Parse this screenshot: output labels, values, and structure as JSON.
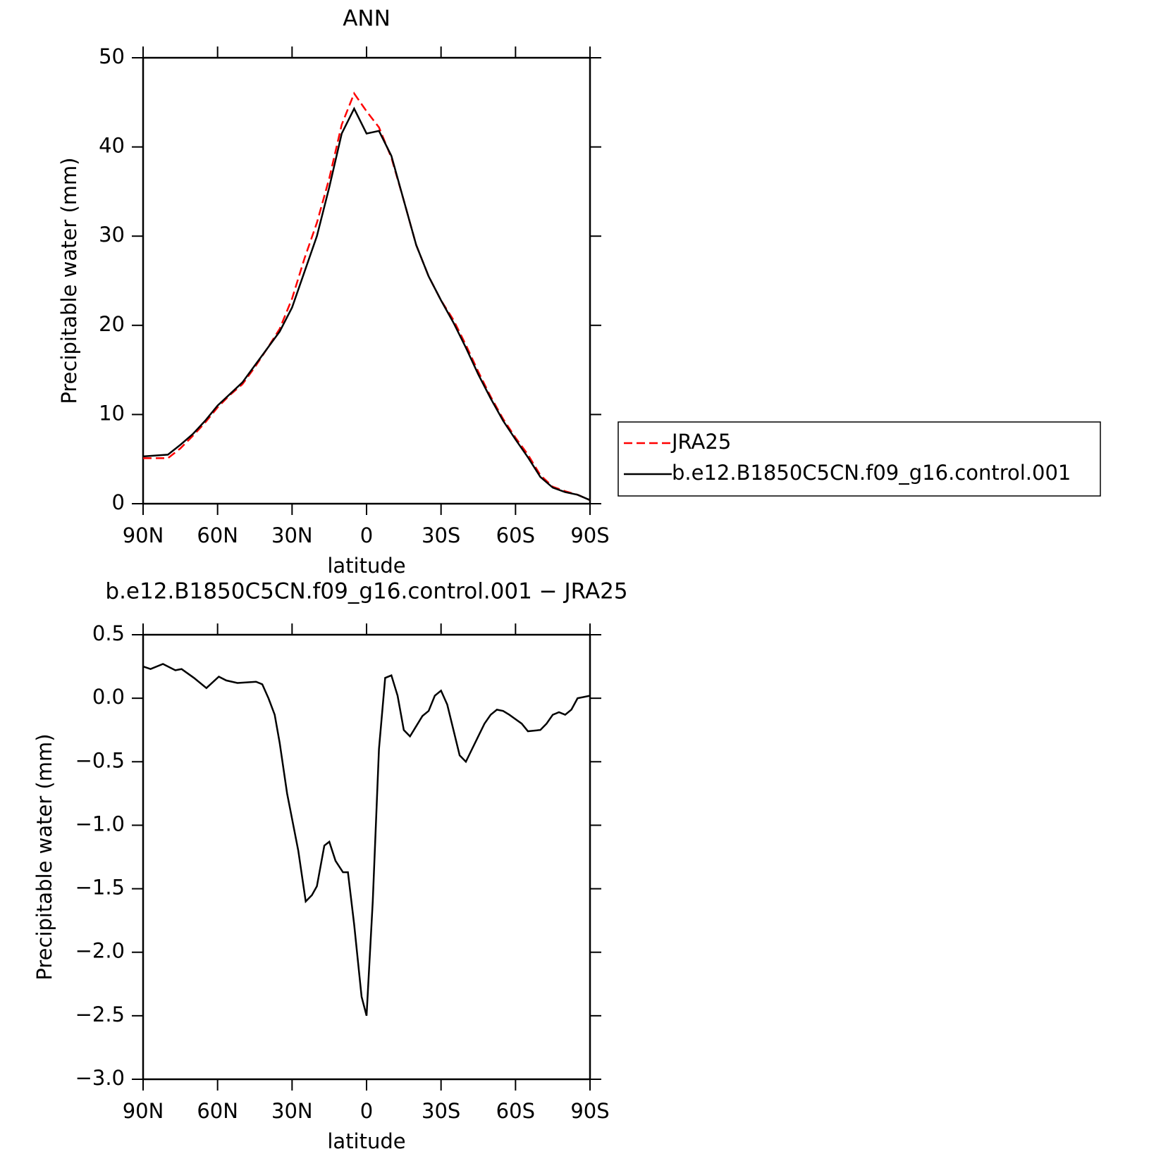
{
  "chart_data": [
    {
      "type": "line",
      "title": "ANN",
      "xlabel": "latitude",
      "ylabel": "Precipitable water (mm)",
      "x": [
        90,
        85,
        80,
        75,
        70,
        65,
        60,
        55,
        50,
        45,
        40,
        35,
        30,
        25,
        20,
        15,
        10,
        5,
        0,
        -5,
        -10,
        -15,
        -20,
        -25,
        -30,
        -35,
        -40,
        -45,
        -50,
        -55,
        -60,
        -65,
        -70,
        -75,
        -80,
        -85,
        -90
      ],
      "series": [
        {
          "name": "JRA25",
          "color": "#ff0000",
          "style": "dashed",
          "values": [
            5.1,
            5.1,
            5.1,
            6.2,
            7.6,
            9.1,
            10.8,
            12.2,
            13.4,
            15.3,
            17.4,
            19.6,
            23.0,
            27.5,
            31.5,
            36.5,
            42.5,
            46.0,
            44.0,
            42.2,
            38.8,
            34.0,
            29.0,
            25.5,
            22.8,
            20.6,
            17.8,
            14.8,
            12.0,
            9.5,
            7.4,
            5.5,
            3.2,
            1.9,
            1.4,
            1.0,
            0.4
          ]
        },
        {
          "name": "b.e12.B1850C5CN.f09_g16.control.001",
          "color": "#000000",
          "style": "solid",
          "values": [
            5.3,
            5.4,
            5.5,
            6.6,
            7.8,
            9.3,
            11.0,
            12.3,
            13.6,
            15.5,
            17.4,
            19.3,
            22.0,
            26.0,
            30.0,
            35.5,
            41.5,
            44.3,
            41.5,
            41.8,
            39.0,
            34.0,
            29.0,
            25.5,
            22.8,
            20.3,
            17.5,
            14.5,
            11.8,
            9.3,
            7.2,
            5.2,
            3.0,
            1.8,
            1.3,
            1.0,
            0.4
          ]
        }
      ],
      "xlim": [
        90,
        -90
      ],
      "xticks": [
        {
          "value": 90,
          "label": "90N"
        },
        {
          "value": 60,
          "label": "60N"
        },
        {
          "value": 30,
          "label": "30N"
        },
        0,
        {
          "value": -30,
          "label": "30S"
        },
        {
          "value": -60,
          "label": "60S"
        },
        {
          "value": -90,
          "label": "90S"
        }
      ],
      "ylim": [
        0,
        50
      ],
      "yticks": [
        0,
        10,
        20,
        30,
        40,
        50
      ],
      "legend": "right"
    },
    {
      "type": "line",
      "title": "b.e12.B1850C5CN.f09_g16.control.001 − JRA25",
      "xlabel": "latitude",
      "ylabel": "Precipitable water (mm)",
      "x": [
        90,
        87,
        82,
        77,
        74.5,
        69.5,
        64.5,
        59.5,
        56.5,
        52,
        44.5,
        42,
        39.5,
        37,
        35,
        32,
        29.5,
        27.5,
        24.5,
        22,
        20,
        17,
        15,
        12.5,
        9.5,
        7.5,
        5,
        2,
        0,
        -2.5,
        -5,
        -7.5,
        -10,
        -12.5,
        -15,
        -17.5,
        -20,
        -22.5,
        -25,
        -27.5,
        -30,
        -32.5,
        -35,
        -37.5,
        -40,
        -42.5,
        -45,
        -47.5,
        -50,
        -52.5,
        -55,
        -57.5,
        -62.5,
        -65,
        -70,
        -72.5,
        -75,
        -77.5,
        -80,
        -82.5,
        -85,
        -87.5,
        -90
      ],
      "series": [
        {
          "color": "#000000",
          "style": "solid",
          "values": [
            0.25,
            0.23,
            0.27,
            0.22,
            0.23,
            0.16,
            0.08,
            0.17,
            0.14,
            0.12,
            0.13,
            0.11,
            0.0,
            -0.13,
            -0.35,
            -0.75,
            -1.0,
            -1.2,
            -1.6,
            -1.55,
            -1.48,
            -1.16,
            -1.13,
            -1.28,
            -1.37,
            -1.37,
            -1.78,
            -2.35,
            -2.5,
            -1.6,
            -0.4,
            0.16,
            0.18,
            0.02,
            -0.25,
            -0.3,
            -0.22,
            -0.14,
            -0.1,
            0.02,
            0.06,
            -0.05,
            -0.25,
            -0.45,
            -0.5,
            -0.4,
            -0.3,
            -0.2,
            -0.13,
            -0.09,
            -0.1,
            -0.13,
            -0.2,
            -0.26,
            -0.25,
            -0.2,
            -0.13,
            -0.11,
            -0.13,
            -0.09,
            0.0,
            0.01,
            0.02
          ]
        }
      ],
      "xlim": [
        90,
        -90
      ],
      "xticks": [
        {
          "value": 90,
          "label": "90N"
        },
        {
          "value": 60,
          "label": "60N"
        },
        {
          "value": 30,
          "label": "30N"
        },
        0,
        {
          "value": -30,
          "label": "30S"
        },
        {
          "value": -60,
          "label": "60S"
        },
        {
          "value": -90,
          "label": "90S"
        }
      ],
      "ylim": [
        -3.0,
        0.5
      ],
      "yticks": [
        0.5,
        {
          "value": 0,
          "label": "0.0"
        },
        {
          "value": -0.5,
          "label": "−0.5"
        },
        {
          "value": -1.0,
          "label": "−1.0"
        },
        {
          "value": -1.5,
          "label": "−1.5"
        },
        {
          "value": -2.0,
          "label": "−2.0"
        },
        {
          "value": -2.5,
          "label": "−2.5"
        },
        {
          "value": -3.0,
          "label": "−3.0"
        }
      ]
    }
  ]
}
